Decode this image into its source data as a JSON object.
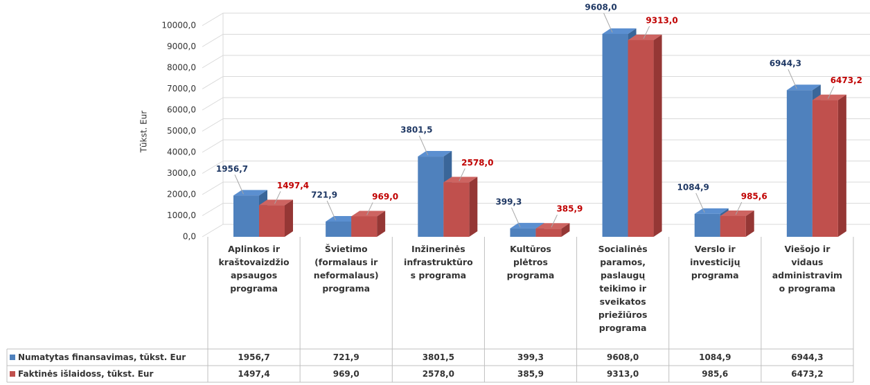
{
  "chart_data": {
    "type": "bar3d",
    "y_label": "Tūkst. Eur",
    "categories": [
      "Aplinkos ir kraštovaizdžio apsaugos programa",
      "Švietimo (formalaus ir neformalaus) programa",
      "Inžinerinės infrastruktūros programa",
      "Kultūros plėtros programa",
      "Socialinės paramos, paslaugų teikimo ir sveikatos priežiūros programa",
      "Verslo ir investicijų programa",
      "Viešojo ir vidaus administravimo programa"
    ],
    "series": [
      {
        "name": "Numatytas finansavimas, tūkst. Eur",
        "color": "#4f81bd",
        "label_color": "#1f3864",
        "values": [
          1956.7,
          721.9,
          3801.5,
          399.3,
          9608.0,
          1084.9,
          6944.3
        ],
        "value_labels": [
          "1956,7",
          "721,9",
          "3801,5",
          "399,3",
          "9608,0",
          "1084,9",
          "6944,3"
        ]
      },
      {
        "name": "Faktinės išlaidoss, tūkst. Eur",
        "color": "#c0504d",
        "label_color": "#c00000",
        "values": [
          1497.4,
          969.0,
          2578.0,
          385.9,
          9313.0,
          985.6,
          6473.2
        ],
        "value_labels": [
          "1497,4",
          "969,0",
          "2578,0",
          "385,9",
          "9313,0",
          "985,6",
          "6473,2"
        ]
      }
    ],
    "ylim": [
      0,
      10000
    ],
    "yticks": [
      {
        "value": 0,
        "label": "0,0"
      },
      {
        "value": 1000,
        "label": "1000,0"
      },
      {
        "value": 2000,
        "label": "2000,0"
      },
      {
        "value": 3000,
        "label": "3000,0"
      },
      {
        "value": 4000,
        "label": "4000,0"
      },
      {
        "value": 5000,
        "label": "5000,0"
      },
      {
        "value": 6000,
        "label": "6000,0"
      },
      {
        "value": 7000,
        "label": "7000,0"
      },
      {
        "value": 8000,
        "label": "8000,0"
      },
      {
        "value": 9000,
        "label": "9000,0"
      },
      {
        "value": 10000,
        "label": "10000,0"
      }
    ],
    "grid": true,
    "data_table": true
  }
}
